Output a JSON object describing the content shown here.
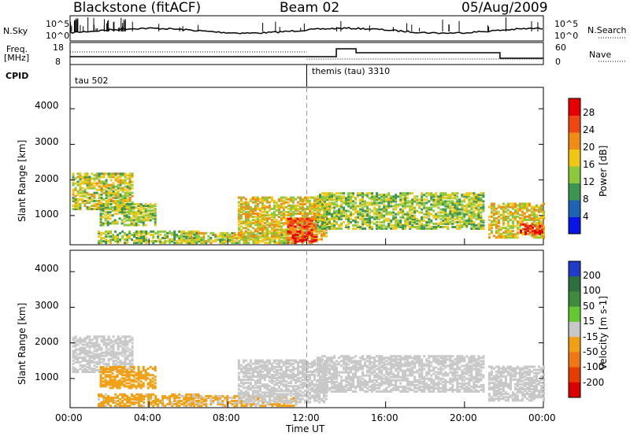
{
  "header": {
    "radar": "Blackstone (fitACF)",
    "beam": "Beam 02",
    "date": "05/Aug/2009"
  },
  "status_panel": {
    "nsky_label": "N.Sky",
    "nsky_ticks": [
      "10^5",
      "10^0"
    ],
    "nsearch_label": "N.Search",
    "nsearch_ticks": [
      "10^5",
      "10^0"
    ],
    "freq_label_1": "Freq.",
    "freq_label_2": "[MHz]",
    "freq_ticks": [
      "18",
      "8"
    ],
    "nave_label": "Nave",
    "nave_ticks": [
      "60",
      "0"
    ],
    "cpid_label": "CPID",
    "cpid_segments": [
      {
        "start_hour": 0,
        "label": "tau 502"
      },
      {
        "start_hour": 12,
        "label": "themis (tau) 3310"
      }
    ]
  },
  "x_axis": {
    "label": "Time UT",
    "ticks": [
      "00:00",
      "04:00",
      "08:00",
      "12:00",
      "16:00",
      "20:00",
      "00:00"
    ],
    "range_hours": [
      0,
      24
    ]
  },
  "chart_data": [
    {
      "type": "heatmap",
      "name": "power",
      "ylabel": "Slant Range [km]",
      "yticks": [
        "1000",
        "2000",
        "3000",
        "4000"
      ],
      "ylim": [
        180,
        4600
      ],
      "colorbar_label": "Power [dB]",
      "colorbar_ticks": [
        "4",
        "8",
        "12",
        "16",
        "20",
        "24",
        "28"
      ],
      "colorbar_range": [
        0,
        32
      ],
      "colors": [
        "#0a14e6",
        "#1e64b4",
        "#3c9650",
        "#8cc83c",
        "#f0c814",
        "#f08c14",
        "#f04614",
        "#e60000"
      ],
      "regions": [
        {
          "t": [
            0.1,
            3.2
          ],
          "r": [
            1150,
            2150
          ],
          "power": 16
        },
        {
          "t": [
            1.5,
            4.3
          ],
          "r": [
            700,
            1300
          ],
          "power": 14
        },
        {
          "t": [
            1.4,
            6.5
          ],
          "r": [
            200,
            550
          ],
          "power": 14
        },
        {
          "t": [
            6.0,
            11.5
          ],
          "r": [
            200,
            480
          ],
          "power": 16
        },
        {
          "t": [
            8.5,
            13.0
          ],
          "r": [
            300,
            1500
          ],
          "power": 18
        },
        {
          "t": [
            11.0,
            12.5
          ],
          "r": [
            200,
            900
          ],
          "power": 26
        },
        {
          "t": [
            12.5,
            21.0
          ],
          "r": [
            600,
            1600
          ],
          "power": 14
        },
        {
          "t": [
            21.2,
            24.0
          ],
          "r": [
            350,
            1300
          ],
          "power": 18
        },
        {
          "t": [
            22.8,
            24.0
          ],
          "r": [
            450,
            750
          ],
          "power": 28
        }
      ]
    },
    {
      "type": "heatmap",
      "name": "velocity",
      "ylabel": "Slant Range [km]",
      "yticks": [
        "1000",
        "2000",
        "3000",
        "4000"
      ],
      "ylim": [
        180,
        4600
      ],
      "colorbar_label": "Velocity [m s-1]",
      "colorbar_ticks": [
        "200",
        "100",
        "50",
        "15",
        "-15",
        "-50",
        "-100",
        "-200"
      ],
      "colorbar_range": [
        -250,
        250
      ],
      "colors": [
        "#1e3cc8",
        "#2c7040",
        "#3c8c3c",
        "#64c832",
        "#c8c8c8",
        "#f0a014",
        "#f07814",
        "#e63c00",
        "#dc0000"
      ],
      "regions": [
        {
          "t": [
            0.1,
            3.2
          ],
          "r": [
            1150,
            2150
          ],
          "velocity": 0
        },
        {
          "t": [
            1.5,
            4.3
          ],
          "r": [
            700,
            1300
          ],
          "velocity": -60
        },
        {
          "t": [
            1.4,
            6.5
          ],
          "r": [
            200,
            550
          ],
          "velocity": -40
        },
        {
          "t": [
            6.0,
            11.5
          ],
          "r": [
            200,
            480
          ],
          "velocity": -30
        },
        {
          "t": [
            8.5,
            13.0
          ],
          "r": [
            300,
            1500
          ],
          "velocity": 0
        },
        {
          "t": [
            12.5,
            21.0
          ],
          "r": [
            600,
            1600
          ],
          "velocity": 0
        },
        {
          "t": [
            21.2,
            24.0
          ],
          "r": [
            350,
            1300
          ],
          "velocity": 0
        }
      ]
    }
  ]
}
